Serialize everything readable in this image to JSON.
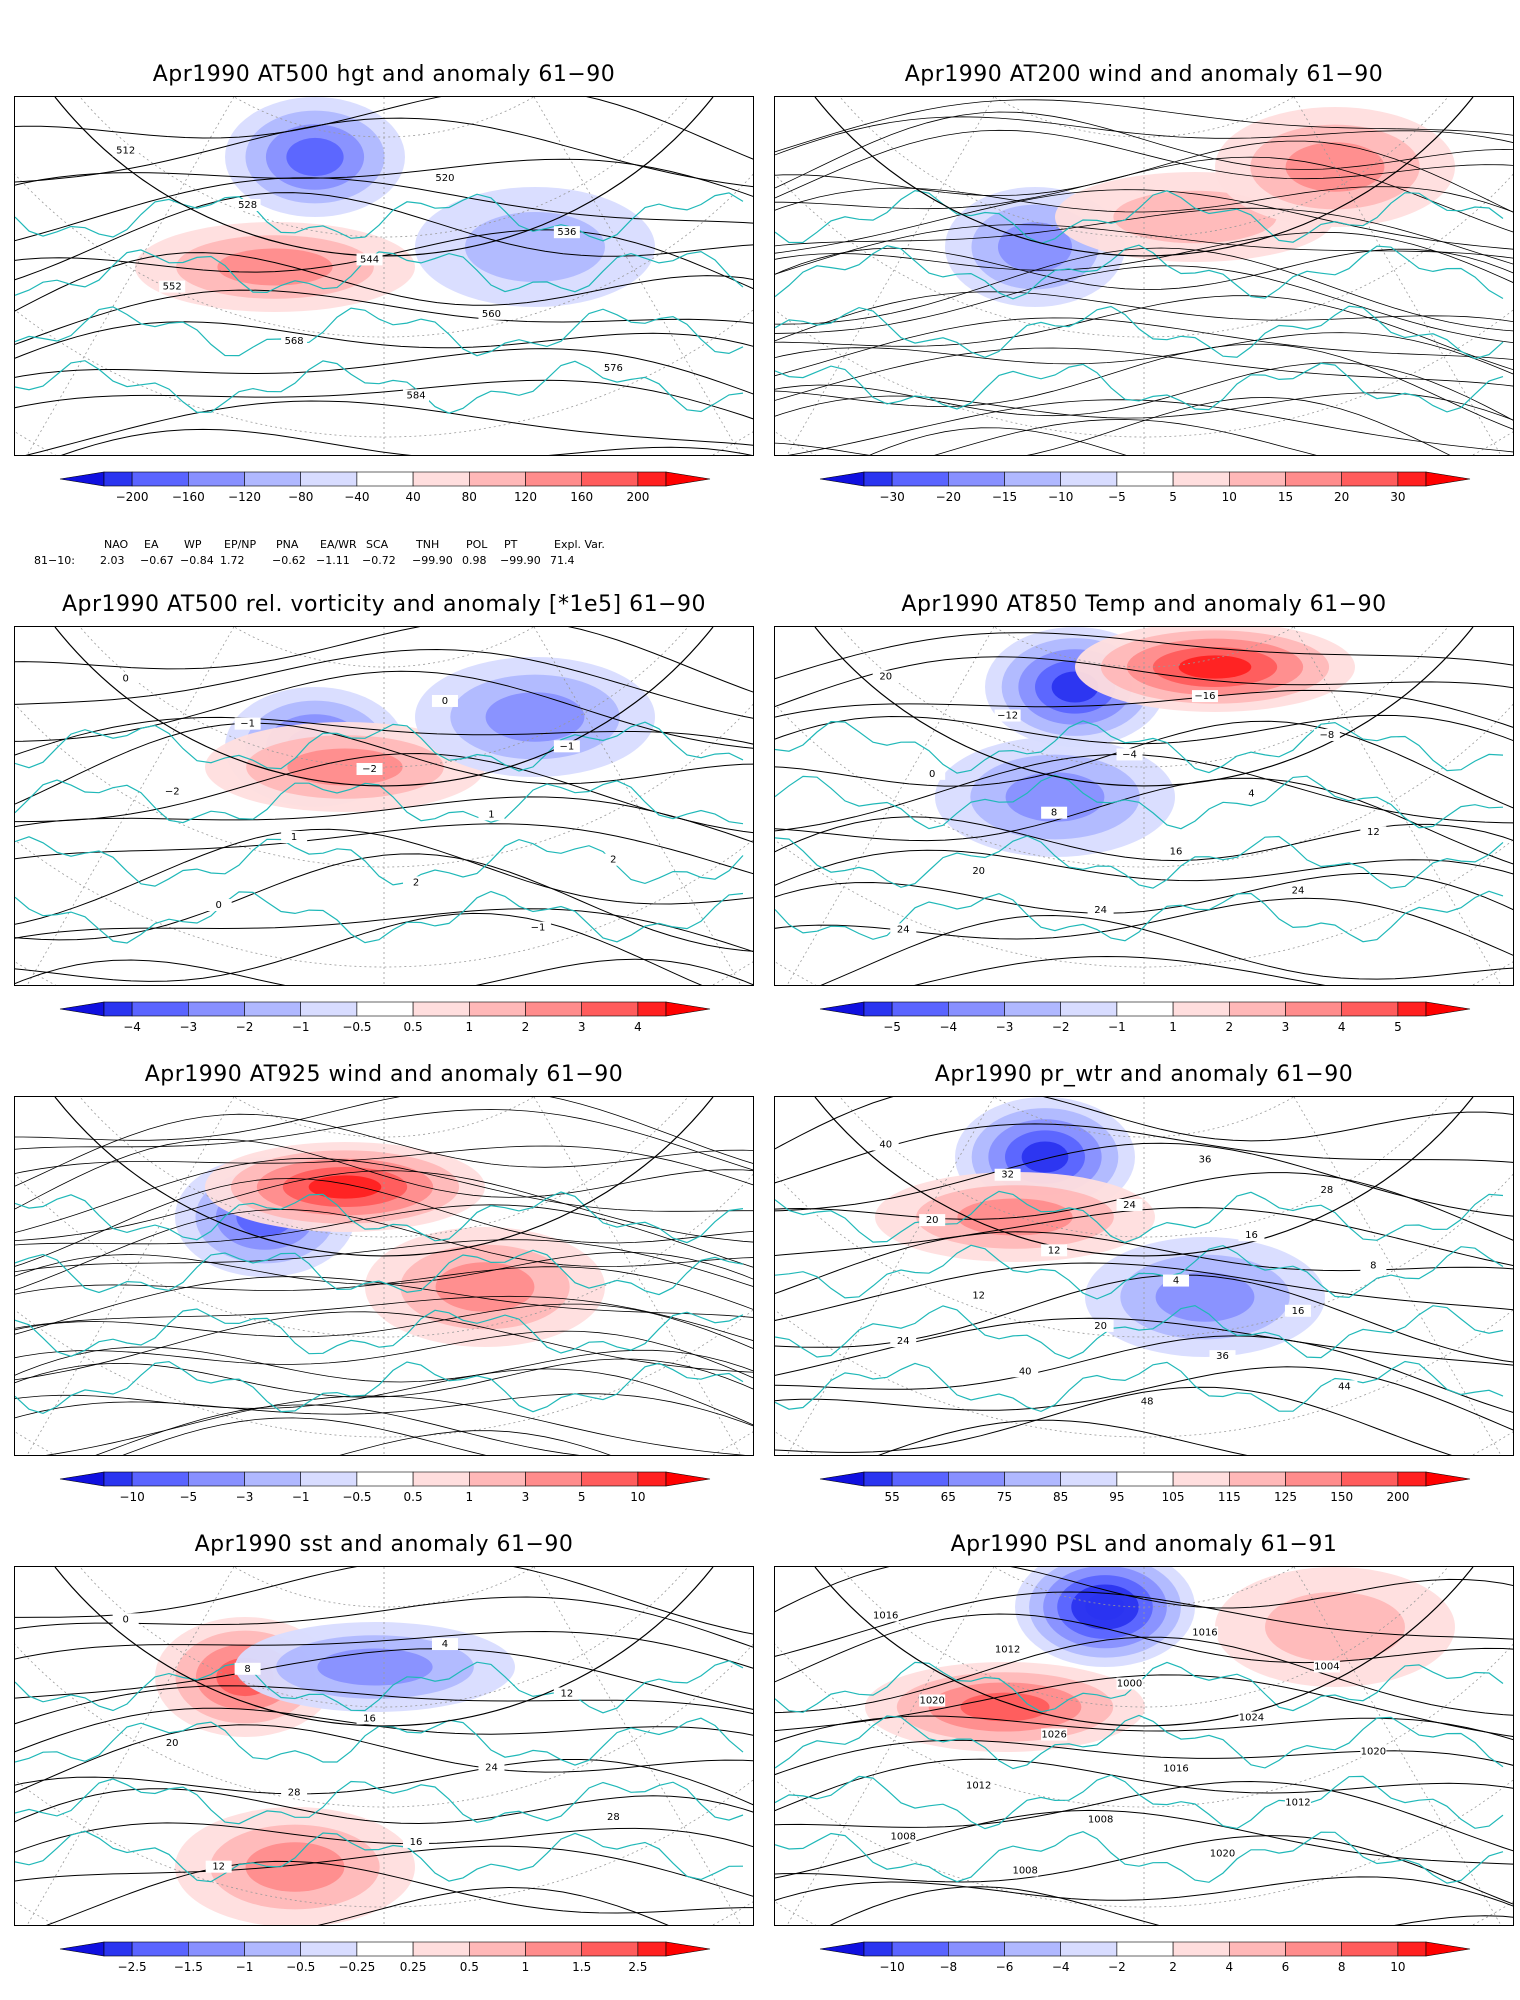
{
  "page": {
    "background": "#ffffff",
    "coastline_color": "#20b8b8",
    "contour_color": "#000000"
  },
  "panels": [
    {
      "id": "p1",
      "title": "Apr1990 AT500 hgt and anomaly 61−90",
      "field": "contours",
      "colorbar": [
        "−200",
        "−160",
        "−120",
        "−80",
        "−40",
        "40",
        "80",
        "120",
        "160",
        "200"
      ],
      "contour_labels": [
        "512",
        "520",
        "528",
        "536",
        "544",
        "552",
        "560",
        "568",
        "576",
        "584"
      ],
      "anomalies": [
        {
          "sign": "neg",
          "level": 3
        },
        {
          "sign": "pos",
          "level": 2
        },
        {
          "sign": "neg",
          "level": 1
        }
      ]
    },
    {
      "id": "p2",
      "title": "Apr1990 AT200 wind and anomaly 61−90",
      "field": "streamlines",
      "colorbar": [
        "−30",
        "−20",
        "−15",
        "−10",
        "−5",
        "5",
        "10",
        "15",
        "20",
        "30"
      ],
      "contour_labels": [],
      "anomalies": [
        {
          "sign": "neg",
          "level": 2
        },
        {
          "sign": "pos",
          "level": 1
        },
        {
          "sign": "pos",
          "level": 2
        }
      ]
    },
    {
      "id": "p3",
      "title": "Apr1990 AT500 rel. vorticity and anomaly [*1e5] 61−90",
      "field": "contours",
      "colorbar": [
        "−4",
        "−3",
        "−2",
        "−1",
        "−0.5",
        "0.5",
        "1",
        "2",
        "3",
        "4"
      ],
      "contour_labels": [
        "0",
        "0",
        "−1",
        "−1",
        "−2",
        "−2",
        "1",
        "1",
        "2",
        "2",
        "0",
        "−1"
      ],
      "anomalies": [
        {
          "sign": "neg",
          "level": 3
        },
        {
          "sign": "pos",
          "level": 2
        },
        {
          "sign": "neg",
          "level": 2
        }
      ]
    },
    {
      "id": "p4",
      "title": "Apr1990 AT850 Temp and anomaly 61−90",
      "field": "contours",
      "colorbar": [
        "−5",
        "−4",
        "−3",
        "−2",
        "−1",
        "1",
        "2",
        "3",
        "4",
        "5"
      ],
      "contour_labels": [
        "20",
        "−16",
        "−12",
        "−8",
        "−4",
        "0",
        "4",
        "8",
        "12",
        "16",
        "20",
        "24",
        "24",
        "24"
      ],
      "anomalies": [
        {
          "sign": "neg",
          "level": 4
        },
        {
          "sign": "pos",
          "level": 4
        },
        {
          "sign": "neg",
          "level": 2
        }
      ]
    },
    {
      "id": "p5",
      "title": "Apr1990 AT925 wind and anomaly 61−90",
      "field": "streamlines",
      "colorbar": [
        "−10",
        "−5",
        "−3",
        "−1",
        "−0.5",
        "0.5",
        "1",
        "3",
        "5",
        "10"
      ],
      "contour_labels": [],
      "anomalies": [
        {
          "sign": "neg",
          "level": 3
        },
        {
          "sign": "pos",
          "level": 4
        },
        {
          "sign": "pos",
          "level": 2
        }
      ]
    },
    {
      "id": "p6",
      "title": "Apr1990 pr_wtr and anomaly 61−90",
      "field": "contours",
      "colorbar": [
        "55",
        "65",
        "75",
        "85",
        "95",
        "105",
        "115",
        "125",
        "150",
        "200"
      ],
      "contour_labels": [
        "40",
        "36",
        "32",
        "28",
        "24",
        "20",
        "16",
        "12",
        "8",
        "4",
        "12",
        "16",
        "20",
        "24",
        "36",
        "40",
        "44",
        "48"
      ],
      "anomalies": [
        {
          "sign": "neg",
          "level": 4
        },
        {
          "sign": "pos",
          "level": 2
        },
        {
          "sign": "neg",
          "level": 2
        }
      ]
    },
    {
      "id": "p7",
      "title": "Apr1990 sst and anomaly 61−90",
      "field": "contours",
      "colorbar": [
        "−2.5",
        "−1.5",
        "−1",
        "−0.5",
        "−0.25",
        "0.25",
        "0.5",
        "1",
        "1.5",
        "2.5"
      ],
      "contour_labels": [
        "0",
        "4",
        "8",
        "12",
        "16",
        "20",
        "24",
        "28",
        "28",
        "16",
        "12"
      ],
      "anomalies": [
        {
          "sign": "pos",
          "level": 3
        },
        {
          "sign": "neg",
          "level": 2
        },
        {
          "sign": "pos",
          "level": 2
        }
      ]
    },
    {
      "id": "p8",
      "title": "Apr1990 PSL and anomaly 61−91",
      "field": "contours",
      "colorbar": [
        "−10",
        "−8",
        "−6",
        "−4",
        "−2",
        "2",
        "4",
        "6",
        "8",
        "10"
      ],
      "contour_labels": [
        "1016",
        "1016",
        "1012",
        "1004",
        "1000",
        "1020",
        "1024",
        "1026",
        "1020",
        "1016",
        "1012",
        "1012",
        "1008",
        "1008",
        "1020",
        "1008"
      ],
      "anomalies": [
        {
          "sign": "neg",
          "level": 5
        },
        {
          "sign": "pos",
          "level": 3
        },
        {
          "sign": "pos",
          "level": 1
        }
      ]
    }
  ],
  "teleconnections": {
    "headers": [
      "NAO",
      "EA",
      "WP",
      "EP/NP",
      "PNA",
      "EA/WR",
      "SCA",
      "TNH",
      "POL",
      "PT",
      "Expl. Var."
    ],
    "row_label": "81−10:",
    "values": [
      "2.03",
      "−0.67",
      "−0.84",
      "1.72",
      "−0.62",
      "−1.11",
      "−0.72",
      "−99.90",
      "0.98",
      "−99.90",
      "71.4"
    ]
  }
}
